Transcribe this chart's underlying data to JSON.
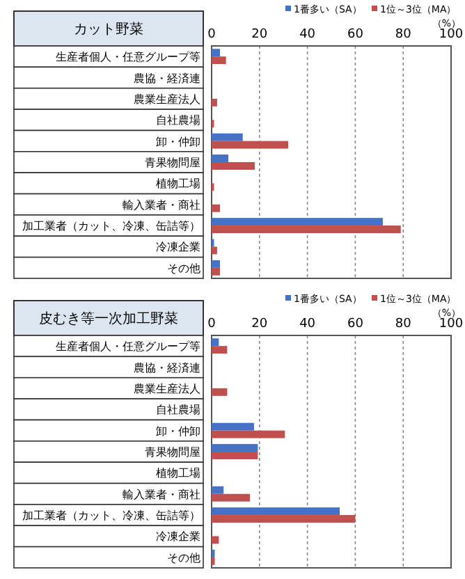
{
  "chart_data": [
    {
      "type": "bar",
      "orientation": "horizontal",
      "title": "カット野菜",
      "categories": [
        "生産者個人・任意グループ等",
        "農協・経済連",
        "農業生産法人",
        "自社農場",
        "卸・仲卸",
        "青果物問屋",
        "植物工場",
        "輸入業者・商社",
        "加工業者（カット、冷凍、缶詰等）",
        "冷凍企業",
        "その他"
      ],
      "series": [
        {
          "name": "1番多い（SA）",
          "color": "#4472c4",
          "values": [
            3.5,
            0,
            0,
            0,
            13,
            7,
            0,
            0,
            71.5,
            1,
            3.5
          ]
        },
        {
          "name": "1位～3位（MA）",
          "color": "#c0504d",
          "values": [
            6,
            0,
            2.3,
            1,
            32,
            18,
            1,
            3.5,
            79,
            2.3,
            3.5
          ]
        }
      ],
      "xlim": [
        0,
        100
      ],
      "xticks": [
        0,
        20,
        40,
        60,
        80,
        100
      ],
      "grid": "x",
      "legend": "top",
      "annotations": [
        "（%）"
      ]
    },
    {
      "type": "bar",
      "orientation": "horizontal",
      "title": "皮むき等一次加工野菜",
      "categories": [
        "生産者個人・任意グループ等",
        "農協・経済連",
        "農業生産法人",
        "自社農場",
        "卸・仲卸",
        "青果物問屋",
        "植物工場",
        "輸入業者・商社",
        "加工業者（カット、冷凍、缶詰等）",
        "冷凍企業",
        "その他"
      ],
      "series": [
        {
          "name": "1番多い（SA）",
          "color": "#4472c4",
          "values": [
            3,
            0,
            0,
            0,
            17.7,
            19.3,
            0,
            5,
            53.5,
            0,
            1.3
          ]
        },
        {
          "name": "1位～3位（MA）",
          "color": "#c0504d",
          "values": [
            6.5,
            0,
            6.5,
            0,
            30.6,
            19.3,
            0,
            16,
            60,
            3,
            1.3
          ]
        }
      ],
      "xlim": [
        0,
        100
      ],
      "xticks": [
        0,
        20,
        40,
        60,
        80,
        100
      ],
      "grid": "x",
      "legend": "top",
      "annotations": [
        "（%）"
      ]
    }
  ]
}
